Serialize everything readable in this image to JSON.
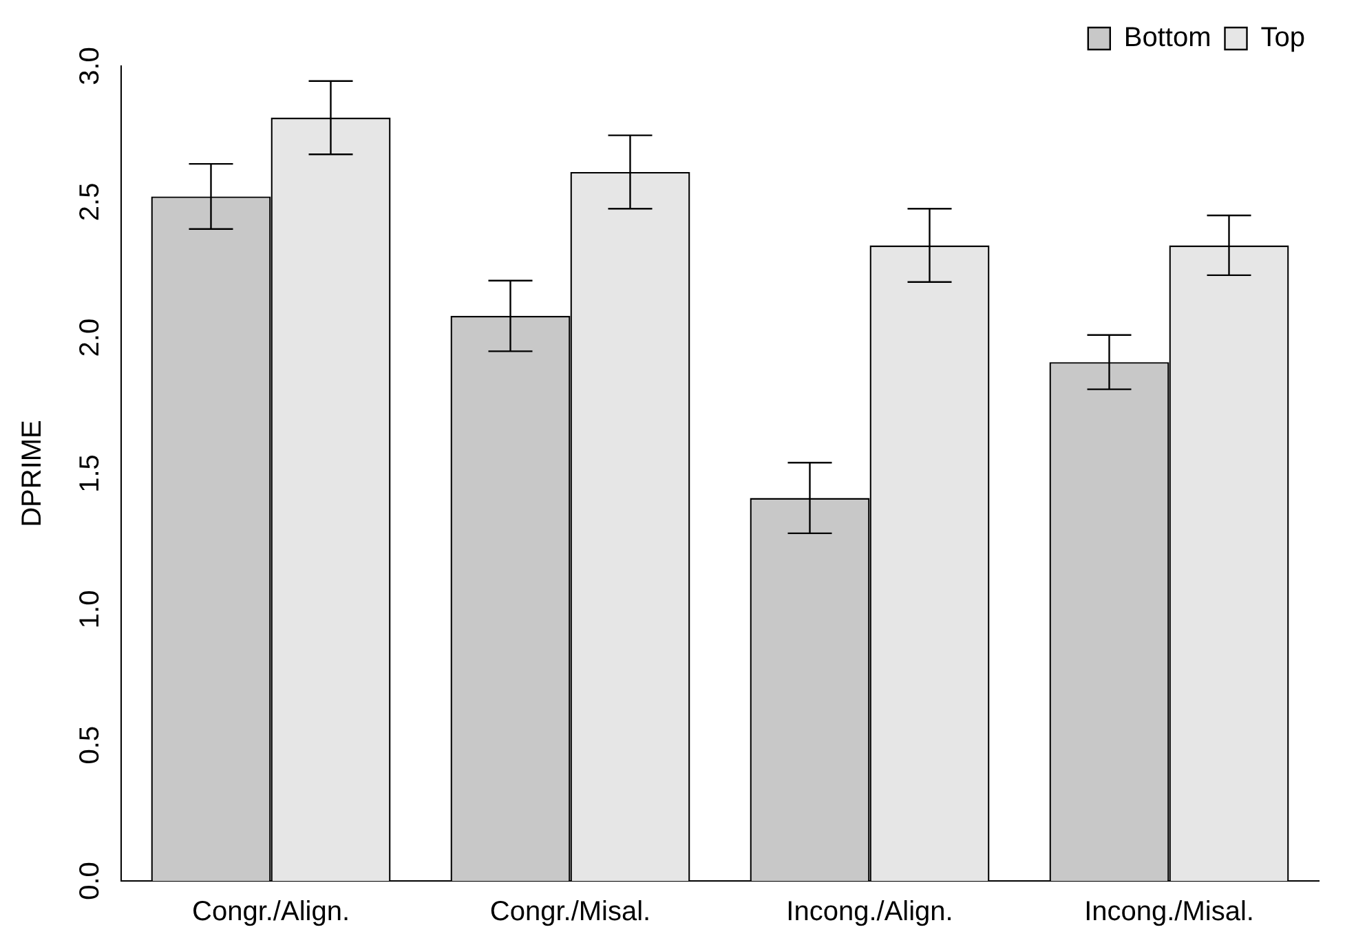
{
  "chart_data": {
    "type": "bar",
    "ylabel": "DPRIME",
    "categories": [
      "Congr./Align.",
      "Congr./Misal.",
      "Incong./Align.",
      "Incong./Misal."
    ],
    "series": [
      {
        "name": "Bottom",
        "color": "#c8c8c8",
        "values": [
          2.52,
          2.08,
          1.41,
          1.91
        ],
        "errors": [
          0.12,
          0.13,
          0.13,
          0.1
        ]
      },
      {
        "name": "Top",
        "color": "#e6e6e6",
        "values": [
          2.81,
          2.61,
          2.34,
          2.34
        ],
        "errors": [
          0.135,
          0.135,
          0.135,
          0.11
        ]
      }
    ],
    "ylim": [
      0,
      3.0
    ],
    "yticks": [
      {
        "value": 0,
        "label": "0.0"
      },
      {
        "value": 0.5,
        "label": "0.5"
      },
      {
        "value": 1,
        "label": "1.0"
      },
      {
        "value": 1.5,
        "label": "1.5"
      },
      {
        "value": 2,
        "label": "2.0"
      },
      {
        "value": 2.5,
        "label": "2.5"
      },
      {
        "value": 3,
        "label": "3.0"
      }
    ],
    "grid": false,
    "legend": "top right"
  }
}
